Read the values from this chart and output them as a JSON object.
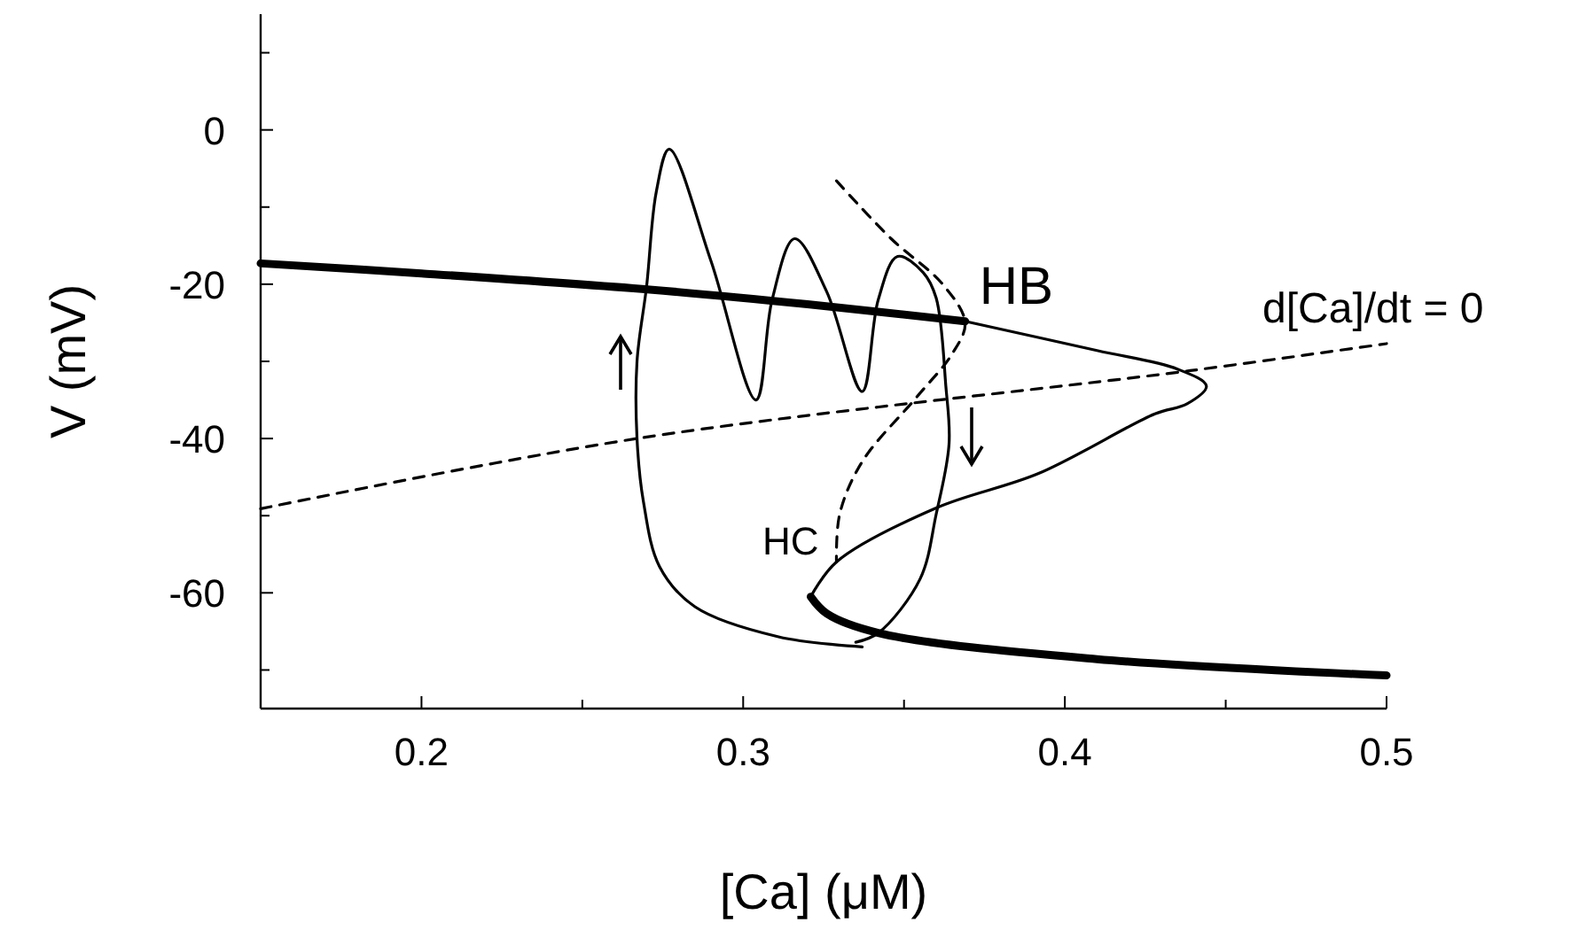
{
  "chart_data": {
    "type": "line",
    "xlabel": "[Ca] (μM)",
    "ylabel": "V (mV)",
    "xlim": [
      0.15,
      0.5
    ],
    "ylim": [
      -75,
      15
    ],
    "xticks": [
      0.2,
      {
        "value": 0.25,
        "label": null
      },
      0.3,
      {
        "value": 0.35,
        "label": null
      },
      0.4,
      {
        "value": 0.45,
        "label": null
      },
      0.5
    ],
    "yticks": [
      {
        "value": -70,
        "label": null
      },
      -60,
      {
        "value": -50,
        "label": null
      },
      -40,
      {
        "value": -30,
        "label": null
      },
      -20,
      {
        "value": -10,
        "label": null
      },
      0,
      {
        "value": 10,
        "label": null
      }
    ],
    "grid": false,
    "marker": "none",
    "series": [
      {
        "color": "#000000",
        "line_style": "solid",
        "x": [
          0.15,
          0.2,
          0.271,
          0.32,
          0.369
        ],
        "values": [
          -17.3,
          -18.6,
          -20.7,
          -22.6,
          -24.8
        ]
      },
      {
        "color": "#000000",
        "line_style": "solid",
        "x": [
          0.369,
          0.41,
          0.435,
          0.444,
          0.438,
          0.428,
          0.392,
          0.36,
          0.329,
          0.321
        ],
        "values": [
          -24.8,
          -28.6,
          -31,
          -33.2,
          -35.5,
          -36.8,
          -44.5,
          -49,
          -56,
          -60.5
        ]
      },
      {
        "color": "#000000",
        "line_style": "solid",
        "x": [
          0.321,
          0.326,
          0.342,
          0.41,
          0.5
        ],
        "values": [
          -60.5,
          -62.7,
          -65.2,
          -68.6,
          -70.7
        ]
      },
      {
        "name": "d[Ca]/dt = 0",
        "color": "#000000",
        "line_style": "dashed",
        "x": [
          0.15,
          0.267,
          0.439,
          0.5
        ],
        "values": [
          -49.1,
          -40,
          -31.2,
          -27.7
        ]
      },
      {
        "color": "#000000",
        "line_style": "dashed",
        "x": [
          0.329,
          0.346,
          0.362,
          0.369,
          0.365,
          0.354,
          0.337,
          0.33,
          0.329
        ],
        "values": [
          -6.6,
          -14.1,
          -20,
          -25,
          -29,
          -34.6,
          -43,
          -49.8,
          -56
        ]
      },
      {
        "color": "#000000",
        "line_style": "solid",
        "x": [
          0.337,
          0.311,
          0.285,
          0.274,
          0.269,
          0.267,
          0.267,
          0.27,
          0.273,
          0.277,
          0.29,
          0.304,
          0.309,
          0.316,
          0.326,
          0.337,
          0.342,
          0.348,
          0.356,
          0.36,
          0.363,
          0.364,
          0.36,
          0.355,
          0.342,
          0.335
        ],
        "values": [
          -67,
          -65.7,
          -61.8,
          -56.6,
          -48.2,
          -40,
          -30,
          -20.2,
          -8,
          -2.5,
          -17,
          -35,
          -22,
          -14.1,
          -21,
          -33.9,
          -22,
          -16.4,
          -18.5,
          -21.8,
          -33.2,
          -40.7,
          -49.8,
          -58.2,
          -65.2,
          -66.4
        ]
      }
    ],
    "annotations": [
      {
        "text": "HB",
        "x": 0.369,
        "y": -24.8
      },
      {
        "text": "HC",
        "x": 0.329,
        "y": -56
      }
    ]
  }
}
